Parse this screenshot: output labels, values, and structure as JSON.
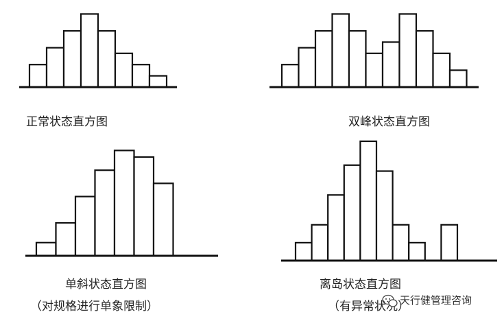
{
  "chart_data": [
    {
      "type": "bar",
      "title": "正常状态直方图",
      "subtitle": "",
      "values": [
        4,
        7,
        10,
        13,
        10,
        6,
        4,
        2
      ]
    },
    {
      "type": "bar",
      "title": "双峰状态直方图",
      "subtitle": "",
      "values": [
        4,
        7,
        10,
        13,
        10,
        6,
        8,
        13,
        10,
        6,
        3
      ]
    },
    {
      "type": "bar",
      "title": "单斜状态直方图",
      "subtitle": "（对规格进行单象限制）",
      "values": [
        2,
        5,
        9,
        13,
        16,
        15,
        11
      ]
    },
    {
      "type": "bar",
      "title": "离岛状态直方图",
      "subtitle": "（有异常状况）",
      "values": [
        3,
        6,
        11,
        16,
        20,
        15,
        6,
        3,
        0,
        6
      ]
    }
  ],
  "watermark": {
    "text": "天行健管理咨询",
    "icon": "wechat-icon"
  }
}
